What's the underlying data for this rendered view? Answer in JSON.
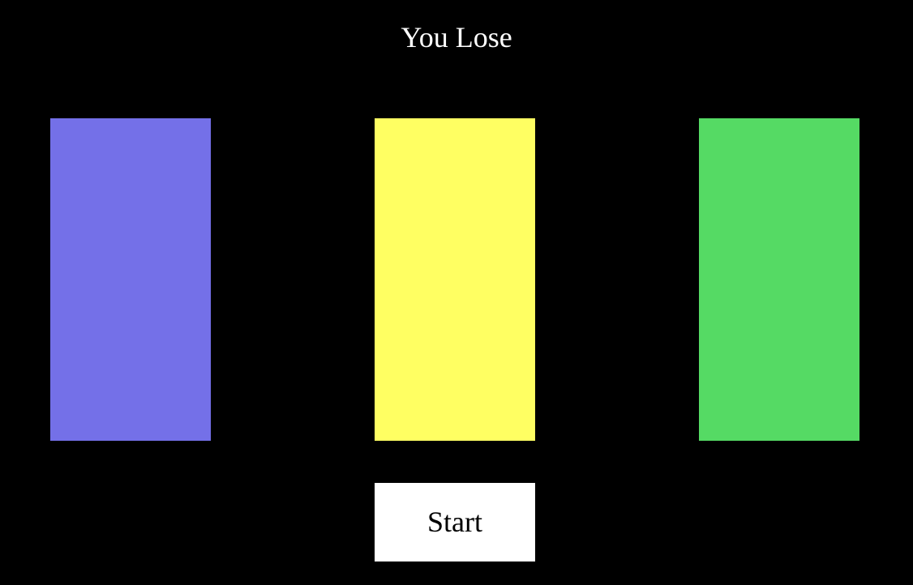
{
  "status": {
    "message": "You Lose"
  },
  "panels": [
    {
      "color": "#7470e8"
    },
    {
      "color": "#ffff62"
    },
    {
      "color": "#55da64"
    }
  ],
  "start_button": {
    "label": "Start"
  }
}
